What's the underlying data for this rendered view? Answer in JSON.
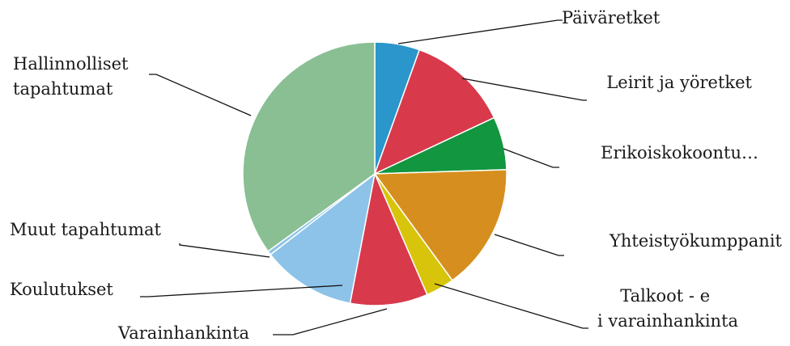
{
  "chart_data": {
    "type": "pie",
    "start_angle_deg": 0,
    "direction": "clockwise",
    "slices": [
      {
        "label": "Päiväretket",
        "value": 5.5,
        "color": "#2a96cb"
      },
      {
        "label": "Leirit ja yöretket",
        "value": 12.5,
        "color": "#d83a4b"
      },
      {
        "label": "Erikoiskokoontu…",
        "value": 6.5,
        "color": "#12963f"
      },
      {
        "label": "Yhteistyökumppanit",
        "value": 15.5,
        "color": "#d68f1e"
      },
      {
        "label": "Talkoot - ei varainhankinta",
        "value": 3.5,
        "color": "#d8c50b"
      },
      {
        "label": "Varainhankinta",
        "value": 9.5,
        "color": "#d83a4b"
      },
      {
        "label": "Koulutukset",
        "value": 11.5,
        "color": "#8dc3e8"
      },
      {
        "label": "Muut tapahtumat",
        "value": 0.5,
        "color": "#8dc3e8"
      },
      {
        "label": "Hallinnolliset tapahtumat",
        "value": 35.0,
        "color": "#89bf93"
      }
    ]
  }
}
